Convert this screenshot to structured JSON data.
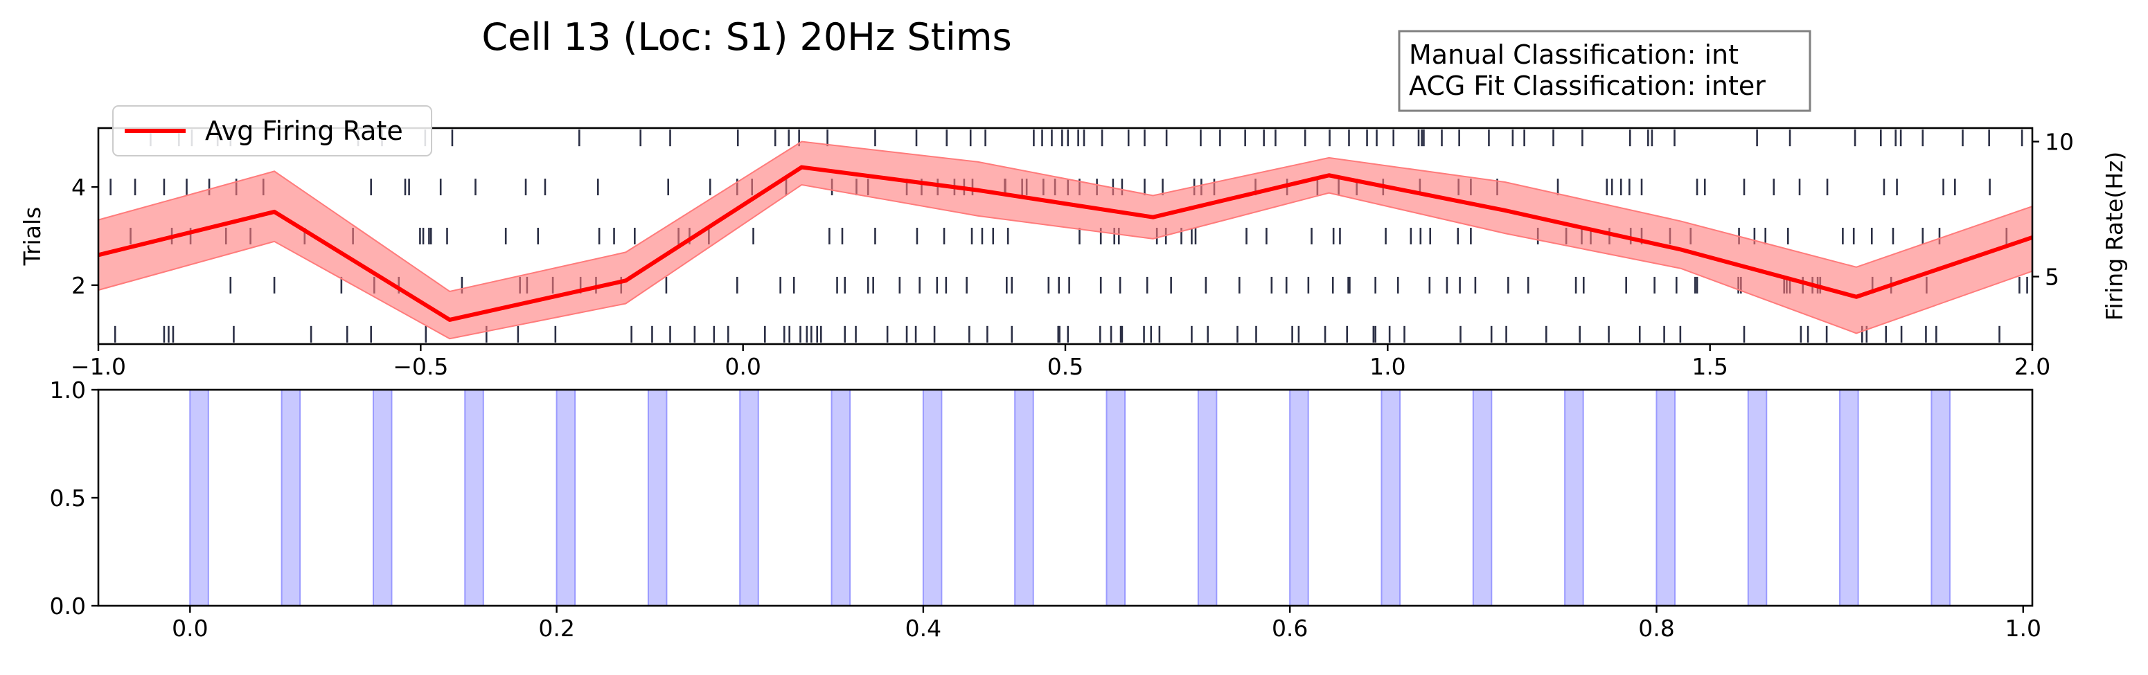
{
  "figure": {
    "title": "Cell 13 (Loc: S1) 20Hz Stims",
    "info_box": [
      "Manual Classification: int",
      "ACG Fit Classification: inter"
    ]
  },
  "colors": {
    "spike": "#2b2f45",
    "rate_line": "#ff0000",
    "rate_band": "#ff7b7b",
    "stim_fill": "#c8c8ff",
    "stim_edge": "#9a9aff"
  },
  "chart_data": [
    {
      "type": "raster_with_line",
      "xlim": [
        -1.0,
        2.0
      ],
      "ylim": [
        0.8,
        5.2
      ],
      "y2lim": [
        2.5,
        10.5
      ],
      "xticks": [
        -1.0,
        -0.5,
        0.0,
        0.5,
        1.0,
        1.5,
        2.0
      ],
      "xtick_labels": [
        "−1.0",
        "−0.5",
        "0.0",
        "0.5",
        "1.0",
        "1.5",
        "2.0"
      ],
      "yticks": [
        2,
        4
      ],
      "ytick_labels": [
        "2",
        "4"
      ],
      "y2ticks": [
        5,
        10
      ],
      "y2tick_labels": [
        "5",
        "10"
      ],
      "ylabel": "Trials",
      "y2label": "Firing Rate(Hz)",
      "legend": {
        "label": "Avg Firing Rate",
        "placement": "upper-left"
      },
      "raster": [
        {
          "trial": 1,
          "spikes": [
            -0.974,
            -0.898,
            -0.891,
            -0.884,
            -0.79,
            -0.67,
            -0.614,
            -0.577,
            -0.492,
            -0.398,
            -0.349,
            -0.291,
            -0.173,
            -0.141,
            -0.113,
            -0.075,
            -0.045,
            -0.023,
            0.034,
            0.064,
            0.072,
            0.089,
            0.099,
            0.106,
            0.115,
            0.121,
            0.158,
            0.175,
            0.224,
            0.254,
            0.268,
            0.297,
            0.351,
            0.379,
            0.417,
            0.489,
            0.491,
            0.504,
            0.554,
            0.571,
            0.588,
            0.586,
            0.622,
            0.633,
            0.646,
            0.696,
            0.721,
            0.767,
            0.796,
            0.852,
            0.862,
            0.903,
            0.937,
            0.978,
            0.981,
            1.003,
            1.026,
            1.113,
            1.161,
            1.184,
            1.246,
            1.298,
            1.343,
            1.391,
            1.429,
            1.454,
            1.553,
            1.641,
            1.652,
            1.681,
            1.736,
            1.743,
            1.773,
            1.797,
            1.835,
            1.851,
            1.949
          ]
        },
        {
          "trial": 2,
          "spikes": [
            -0.795,
            -0.727,
            -0.623,
            -0.572,
            -0.534,
            -0.436,
            -0.346,
            -0.335,
            -0.295,
            -0.252,
            -0.228,
            -0.189,
            -0.119,
            -0.009,
            0.058,
            0.079,
            0.146,
            0.158,
            0.194,
            0.202,
            0.243,
            0.274,
            0.301,
            0.315,
            0.347,
            0.409,
            0.417,
            0.474,
            0.49,
            0.506,
            0.555,
            0.585,
            0.627,
            0.664,
            0.718,
            0.77,
            0.82,
            0.843,
            0.877,
            0.915,
            0.939,
            0.941,
            0.981,
            1.016,
            1.065,
            1.092,
            1.112,
            1.136,
            1.187,
            1.218,
            1.292,
            1.304,
            1.37,
            1.414,
            1.448,
            1.477,
            1.48,
            1.544,
            1.548,
            1.615,
            1.619,
            1.624,
            1.644,
            1.659,
            1.667,
            1.671,
            1.752,
            1.781,
            1.836,
            1.98,
            1.992
          ]
        },
        {
          "trial": 3,
          "spikes": [
            -0.95,
            -0.886,
            -0.857,
            -0.802,
            -0.764,
            -0.68,
            -0.605,
            -0.501,
            -0.459,
            -0.484,
            -0.496,
            -0.487,
            -0.368,
            -0.318,
            -0.223,
            -0.2,
            -0.168,
            -0.1,
            -0.083,
            -0.053,
            0.016,
            0.134,
            0.154,
            0.205,
            0.27,
            0.312,
            0.355,
            0.371,
            0.388,
            0.411,
            0.522,
            0.555,
            0.576,
            0.583,
            0.642,
            0.656,
            0.68,
            0.696,
            0.702,
            0.781,
            0.812,
            0.882,
            0.916,
            0.926,
            0.997,
            1.036,
            1.051,
            1.066,
            1.109,
            1.129,
            1.233,
            1.277,
            1.301,
            1.315,
            1.344,
            1.377,
            1.394,
            1.438,
            1.47,
            1.545,
            1.569,
            1.586,
            1.621,
            1.706,
            1.723,
            1.751,
            1.784,
            1.83,
            1.856,
            1.96
          ]
        },
        {
          "trial": 4,
          "spikes": [
            -0.981,
            -0.943,
            -0.898,
            -0.863,
            -0.828,
            -0.786,
            -0.744,
            -0.577,
            -0.524,
            -0.518,
            -0.469,
            -0.415,
            -0.337,
            -0.307,
            -0.225,
            -0.116,
            -0.051,
            -0.009,
            0.014,
            0.067,
            0.138,
            0.176,
            0.194,
            0.254,
            0.277,
            0.302,
            0.328,
            0.343,
            0.356,
            0.406,
            0.407,
            0.433,
            0.44,
            0.466,
            0.484,
            0.504,
            0.522,
            0.549,
            0.574,
            0.588,
            0.623,
            0.651,
            0.7,
            0.711,
            0.731,
            0.795,
            0.844,
            0.891,
            0.924,
            0.952,
            0.993,
            1.05,
            1.11,
            1.129,
            1.17,
            1.264,
            1.34,
            1.348,
            1.362,
            1.375,
            1.394,
            1.48,
            1.492,
            1.553,
            1.599,
            1.639,
            1.682,
            1.77,
            1.79,
            1.862,
            1.88,
            1.934
          ]
        },
        {
          "trial": 5,
          "spikes": [
            -0.919,
            -0.875,
            -0.855,
            -0.815,
            -0.795,
            -0.597,
            -0.56,
            -0.493,
            -0.451,
            -0.254,
            -0.159,
            -0.113,
            -0.008,
            0.05,
            0.071,
            0.087,
            0.131,
            0.205,
            0.269,
            0.316,
            0.353,
            0.376,
            0.451,
            0.464,
            0.479,
            0.495,
            0.504,
            0.52,
            0.529,
            0.557,
            0.598,
            0.623,
            0.657,
            0.71,
            0.74,
            0.779,
            0.808,
            0.826,
            0.872,
            0.91,
            0.94,
            0.968,
            0.983,
            1.009,
            1.048,
            1.053,
            1.056,
            1.084,
            1.111,
            1.157,
            1.194,
            1.212,
            1.257,
            1.302,
            1.376,
            1.404,
            1.41,
            1.445,
            1.573,
            1.624,
            1.725,
            1.765,
            1.788,
            1.796,
            1.83,
            1.892,
            1.933,
            1.984
          ]
        }
      ],
      "rate": {
        "x": [
          -1.0,
          -0.727,
          -0.455,
          -0.182,
          0.091,
          0.364,
          0.636,
          0.909,
          1.182,
          1.455,
          1.727,
          2.0
        ],
        "y": [
          5.8,
          7.4,
          3.4,
          4.85,
          9.05,
          8.2,
          7.2,
          8.75,
          7.45,
          6.0,
          4.25,
          6.45
        ],
        "lower": [
          4.5,
          6.3,
          2.7,
          4.0,
          8.4,
          7.25,
          6.4,
          8.1,
          6.6,
          5.3,
          2.9,
          5.2
        ],
        "upper": [
          7.1,
          8.9,
          4.45,
          5.9,
          10.0,
          9.25,
          8.0,
          9.4,
          8.5,
          7.05,
          5.35,
          7.6
        ]
      }
    },
    {
      "type": "bar",
      "xlim": [
        -0.05,
        1.005
      ],
      "ylim": [
        0.0,
        1.0
      ],
      "xticks": [
        0.0,
        0.2,
        0.4,
        0.6,
        0.8,
        1.0
      ],
      "xtick_labels": [
        "0.0",
        "0.2",
        "0.4",
        "0.6",
        "0.8",
        "1.0"
      ],
      "yticks": [
        0.0,
        0.5,
        1.0
      ],
      "ytick_labels": [
        "0.0",
        "0.5",
        "1.0"
      ],
      "stim_width": 0.01,
      "stim_onsets": [
        0.0,
        0.05,
        0.1,
        0.15,
        0.2,
        0.25,
        0.3,
        0.35,
        0.4,
        0.45,
        0.5,
        0.55,
        0.6,
        0.65,
        0.7,
        0.75,
        0.8,
        0.85,
        0.9,
        0.95
      ]
    }
  ]
}
